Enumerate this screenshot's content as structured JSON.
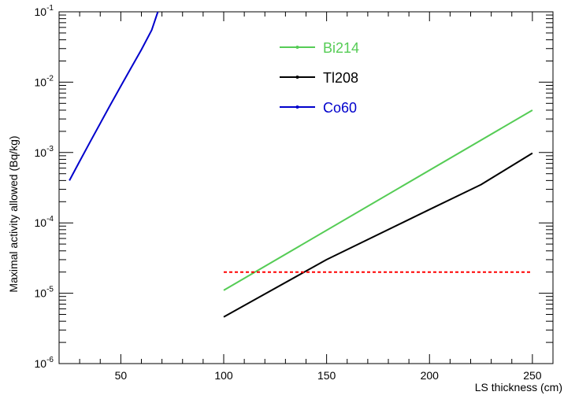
{
  "chart_data": {
    "type": "line",
    "title": "",
    "xlabel": "LS thickness (cm)",
    "ylabel": "Maximal activity allowed (Bq/kg)",
    "xlim": [
      20,
      260
    ],
    "ylim": [
      1e-06,
      0.1
    ],
    "yscale": "log",
    "grid": false,
    "legend_position": "top-center",
    "x_ticks": [
      {
        "value": 50,
        "label": "50"
      },
      {
        "value": 100,
        "label": "100"
      },
      {
        "value": 150,
        "label": "150"
      },
      {
        "value": 200,
        "label": "200"
      },
      {
        "value": 250,
        "label": "250"
      }
    ],
    "y_ticks": [
      {
        "value": 1e-06,
        "base": "10",
        "exp": "-6"
      },
      {
        "value": 1e-05,
        "base": "10",
        "exp": "-5"
      },
      {
        "value": 0.0001,
        "base": "10",
        "exp": "-4"
      },
      {
        "value": 0.001,
        "base": "10",
        "exp": "-3"
      },
      {
        "value": 0.01,
        "base": "10",
        "exp": "-2"
      },
      {
        "value": 0.1,
        "base": "10",
        "exp": "-1"
      }
    ],
    "series": [
      {
        "name": "Bi214",
        "color": "#55cc55",
        "x": [
          100,
          250
        ],
        "y": [
          1.1e-05,
          0.004
        ]
      },
      {
        "name": "Tl208",
        "color": "#000000",
        "x": [
          100,
          150,
          200,
          225,
          250
        ],
        "y": [
          4.6e-06,
          3e-05,
          0.000155,
          0.00035,
          0.00098
        ]
      },
      {
        "name": "Co60",
        "color": "#0000cc",
        "x": [
          25,
          30,
          35,
          40,
          45,
          50,
          55,
          60,
          65,
          68
        ],
        "y": [
          0.0004,
          0.00075,
          0.0014,
          0.0026,
          0.0048,
          0.0088,
          0.016,
          0.029,
          0.055,
          0.1
        ]
      }
    ],
    "reference_line": {
      "y": 2e-05,
      "color": "#ff0000",
      "style": "dashed"
    }
  }
}
